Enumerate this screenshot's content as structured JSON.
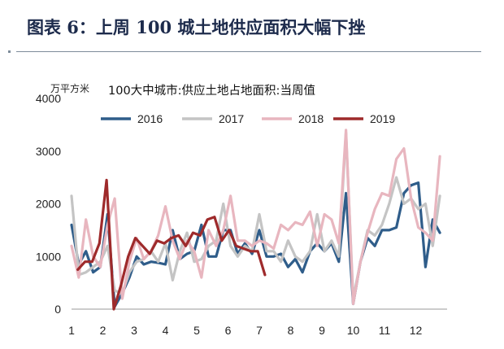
{
  "header": {
    "title": "图表 6：上周 100 城土地供应面积大幅下挫"
  },
  "chart_data": {
    "type": "line",
    "title": "100大中城市:供应土地占地面积:当周值",
    "ylabel": "万平方米",
    "xlabel": "",
    "ylim": [
      0,
      4000
    ],
    "yticks": [
      "0",
      "1000",
      "2000",
      "3000",
      "4000"
    ],
    "xlim": [
      1,
      13
    ],
    "xticks": [
      "1",
      "2",
      "3",
      "4",
      "5",
      "6",
      "7",
      "8",
      "9",
      "10",
      "11",
      "12"
    ],
    "legend_position": "top",
    "series": [
      {
        "name": "2016",
        "color": "#2f5d8a",
        "x": [
          1.0,
          1.23,
          1.46,
          1.69,
          1.92,
          2.15,
          2.38,
          2.62,
          2.85,
          3.08,
          3.31,
          3.54,
          3.77,
          4.0,
          4.23,
          4.46,
          4.69,
          4.92,
          5.15,
          5.38,
          5.62,
          5.85,
          6.08,
          6.31,
          6.54,
          6.77,
          7.0,
          7.23,
          7.46,
          7.69,
          7.92,
          8.15,
          8.38,
          8.62,
          8.85,
          9.08,
          9.31,
          9.54,
          9.77,
          10.0,
          10.23,
          10.46,
          10.69,
          10.92,
          11.15,
          11.38,
          11.62,
          11.85,
          12.08,
          12.31,
          12.54,
          12.77
        ],
        "y": [
          1600,
          850,
          1100,
          700,
          800,
          1800,
          50,
          300,
          600,
          1000,
          850,
          900,
          880,
          850,
          1500,
          950,
          1050,
          1100,
          1600,
          1000,
          1000,
          1500,
          1500,
          1050,
          1250,
          1050,
          1500,
          1000,
          1000,
          1050,
          800,
          950,
          700,
          1100,
          1250,
          1100,
          1250,
          900,
          2200,
          100,
          900,
          1350,
          1200,
          1500,
          1500,
          1550,
          2200,
          2350,
          2400,
          800,
          1700,
          1450
        ]
      },
      {
        "name": "2017",
        "color": "#c4c4c4",
        "x": [
          1.0,
          1.23,
          1.46,
          1.69,
          1.92,
          2.15,
          2.38,
          2.62,
          2.85,
          3.08,
          3.31,
          3.54,
          3.77,
          4.0,
          4.23,
          4.46,
          4.69,
          4.92,
          5.15,
          5.38,
          5.62,
          5.85,
          6.08,
          6.31,
          6.54,
          6.77,
          7.0,
          7.23,
          7.46,
          7.69,
          7.92,
          8.15,
          8.38,
          8.62,
          8.85,
          9.08,
          9.31,
          9.54,
          9.77,
          10.0,
          10.23,
          10.46,
          10.69,
          10.92,
          11.15,
          11.38,
          11.62,
          11.85,
          12.08,
          12.31,
          12.54,
          12.77
        ],
        "y": [
          2150,
          650,
          700,
          800,
          900,
          1200,
          350,
          300,
          700,
          900,
          950,
          1100,
          900,
          1250,
          550,
          1100,
          1450,
          900,
          950,
          1200,
          1300,
          2000,
          1200,
          1000,
          1200,
          1100,
          1800,
          1100,
          1100,
          900,
          1300,
          1000,
          900,
          1100,
          1800,
          1100,
          1300,
          1000,
          3350,
          200,
          900,
          1500,
          1400,
          1600,
          2000,
          2500,
          2000,
          2100,
          1900,
          2000,
          1200,
          2150
        ]
      },
      {
        "name": "2018",
        "color": "#e8b6bf",
        "x": [
          1.0,
          1.23,
          1.46,
          1.69,
          1.92,
          2.15,
          2.38,
          2.62,
          2.85,
          3.08,
          3.31,
          3.54,
          3.77,
          4.0,
          4.23,
          4.46,
          4.69,
          4.92,
          5.15,
          5.38,
          5.62,
          5.85,
          6.08,
          6.31,
          6.54,
          6.77,
          7.0,
          7.23,
          7.46,
          7.69,
          7.92,
          8.15,
          8.38,
          8.62,
          8.85,
          9.08,
          9.31,
          9.54,
          9.77,
          10.0,
          10.23,
          10.46,
          10.69,
          10.92,
          11.15,
          11.38,
          11.62,
          11.85,
          12.08,
          12.31,
          12.54,
          12.77
        ],
        "y": [
          1200,
          600,
          1700,
          1000,
          800,
          1600,
          2100,
          200,
          900,
          1350,
          950,
          1100,
          1400,
          1950,
          1300,
          950,
          1300,
          1100,
          600,
          1500,
          1200,
          1500,
          2150,
          1300,
          1300,
          1200,
          1300,
          1250,
          1150,
          1600,
          1500,
          1650,
          1600,
          1850,
          1200,
          1800,
          1700,
          1250,
          3400,
          100,
          900,
          1450,
          1900,
          2200,
          2150,
          2850,
          3050,
          2100,
          1550,
          1450,
          1300,
          2900
        ]
      },
      {
        "name": "2019",
        "color": "#9e2a2b",
        "x": [
          1.2,
          1.43,
          1.66,
          1.89,
          2.12,
          2.35,
          2.58,
          2.81,
          3.04,
          3.27,
          3.5,
          3.73,
          3.96,
          4.19,
          4.42,
          4.65,
          4.88,
          5.11,
          5.34,
          5.57,
          5.8,
          6.03,
          6.26,
          6.49,
          6.72,
          6.95,
          7.18
        ],
        "y": [
          750,
          900,
          900,
          1250,
          2450,
          0,
          450,
          1000,
          1350,
          1200,
          1050,
          1300,
          1250,
          1350,
          1400,
          1200,
          1450,
          1400,
          1700,
          1750,
          1300,
          1500,
          1200,
          1150,
          1100,
          1100,
          650
        ]
      }
    ]
  }
}
